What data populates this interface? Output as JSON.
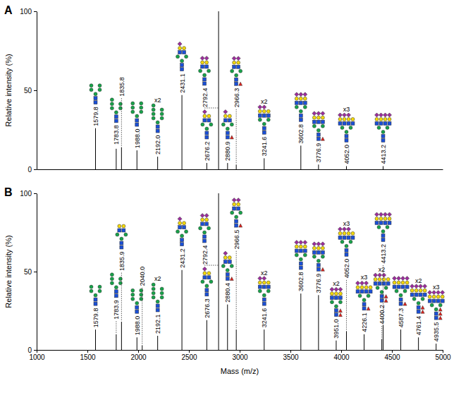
{
  "chart_data": [
    {
      "type": "stem",
      "title": "A",
      "y_label": "Relative intensity (%)",
      "color": "#000000",
      "x": [
        1579.8,
        1783.8,
        1835.8,
        1988.0,
        2192.0,
        2431.1,
        2676.2,
        2792.4,
        2880.9,
        2966.3,
        3241.6,
        3602.8,
        3776.9,
        4052.0,
        4413.2
      ],
      "x_labels": [
        "1579.8",
        "1783.8",
        "1835.8",
        "1988.0",
        "2192.0",
        "2431.1",
        "2676.2",
        "2792.4",
        "2880.9",
        "2966.3",
        "3241.6",
        "3602.8",
        "3776.9",
        "4052.0",
        "4413.2"
      ],
      "values": [
        26,
        13,
        14,
        12,
        8,
        47,
        4,
        100,
        4,
        3,
        7,
        15,
        3,
        2,
        2
      ],
      "annotations": [
        null,
        null,
        null,
        null,
        "x2",
        null,
        null,
        null,
        null,
        null,
        "x2",
        null,
        null,
        "x3",
        null
      ],
      "xlim": [
        1000,
        5000
      ],
      "ylim": [
        0,
        100
      ],
      "yticks": [
        0,
        50,
        100
      ],
      "tick_labels": "y"
    },
    {
      "type": "stem",
      "title": "B",
      "y_label": "Relative intensity (%)",
      "x_label": "Mass (m/z)",
      "color": "#000000",
      "x": [
        1579.8,
        1783.9,
        1835.9,
        1988.0,
        2040.0,
        2192.1,
        2431.2,
        2676.3,
        2792.4,
        2880.4,
        2966.5,
        3241.6,
        3602.8,
        3776.9,
        3951.0,
        4052.0,
        4226.1,
        4400.2,
        4413.2,
        4587.3,
        4761.4,
        4935.5
      ],
      "x_labels": [
        "1579.8",
        "1783.9",
        "1835.9",
        "1988.0",
        "2040.0",
        "2192.1",
        "2431.2",
        "2676.3",
        "2792.4",
        "2880.4",
        "2966.5",
        "3241.6",
        "3602.8",
        "3776.9",
        "3951.0",
        "4052.0",
        "4226.1",
        "4400.2",
        "4413.2",
        "4587.3",
        "4761.4",
        "4935.5"
      ],
      "values": [
        13,
        10,
        18,
        8,
        3,
        9,
        51,
        19,
        100,
        29,
        13,
        13,
        36,
        35,
        6,
        12,
        10,
        7,
        16,
        13,
        8,
        4
      ],
      "annotations": [
        null,
        null,
        null,
        null,
        null,
        "x2",
        null,
        null,
        null,
        null,
        null,
        "x2",
        null,
        null,
        "x2",
        "x3",
        "x3",
        "x2",
        null,
        null,
        "x2",
        "x3"
      ],
      "xlim": [
        1000,
        5000
      ],
      "ylim": [
        0,
        100
      ],
      "yticks": [
        0,
        50,
        100
      ],
      "xticks": [
        1000,
        1500,
        2000,
        2500,
        3000,
        3500,
        4000,
        4500,
        5000
      ]
    }
  ]
}
